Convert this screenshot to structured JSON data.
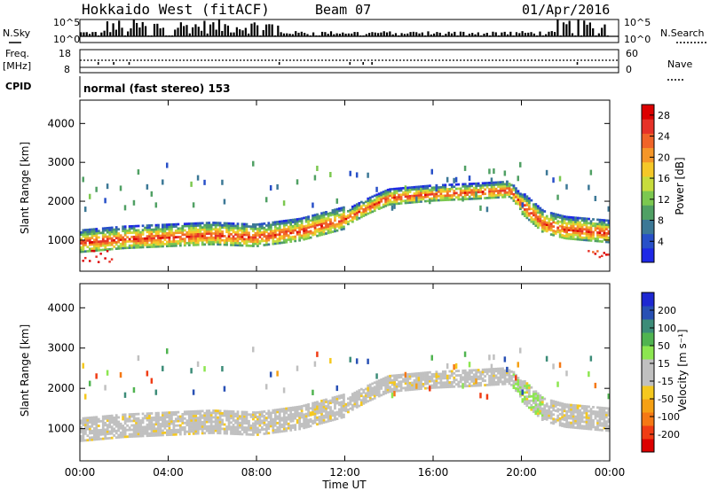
{
  "header": {
    "station": "Hokkaido West (fitACF)",
    "beam": "Beam 07",
    "date": "01/Apr/2016"
  },
  "left_labels": {
    "nsky": "N.Sky",
    "freq": "Freq.",
    "freq_unit": "[MHz]",
    "cpid": "CPID"
  },
  "right_labels": {
    "nsearch": "N.Search",
    "nave": "Nave"
  },
  "noise_ticks": {
    "top": "10^5",
    "bottom": "10^0"
  },
  "freq_ticks": {
    "top": "18",
    "bottom": "8"
  },
  "nave_ticks": {
    "top": "60",
    "bottom": "0"
  },
  "cpid_text": "normal (fast stereo) 153",
  "colors": {
    "power_scale": [
      "#1e28e6",
      "#2850c8",
      "#3c7896",
      "#50a064",
      "#7cc850",
      "#c8dc3c",
      "#f5c828",
      "#f59628",
      "#f06428",
      "#e63228",
      "#dc0000"
    ],
    "velocity_scale": [
      "#dc0000",
      "#f03c14",
      "#f57814",
      "#f5a014",
      "#f5c81e",
      "#c0c0c0",
      "#c0c0c0",
      "#8ce650",
      "#50b450",
      "#3c8c78",
      "#2850b4",
      "#1e28d2"
    ]
  },
  "chart_data": [
    {
      "type": "heatmap",
      "panel": "power",
      "xlabel": "",
      "ylabel": "Slant Range [km]",
      "x_ticks": [
        "00:00",
        "04:00",
        "08:00",
        "12:00",
        "16:00",
        "20:00",
        "00:00"
      ],
      "y_ticks": [
        "1000",
        "2000",
        "3000",
        "4000"
      ],
      "ylim": [
        200,
        4600
      ],
      "xlim_hours": [
        0,
        24
      ],
      "colorbar_label": "Power [dB]",
      "colorbar_ticks": [
        "4",
        "8",
        "12",
        "16",
        "20",
        "24",
        "28"
      ],
      "colorbar_range": [
        0,
        30
      ],
      "echo_band": {
        "hours": [
          0,
          2,
          4,
          6,
          8,
          10,
          12,
          13,
          14,
          16,
          18,
          19.5,
          20,
          21,
          22,
          24
        ],
        "range_km": [
          900,
          1000,
          1050,
          1100,
          1050,
          1200,
          1500,
          1800,
          2050,
          2150,
          2200,
          2250,
          1900,
          1400,
          1250,
          1150
        ]
      }
    },
    {
      "type": "heatmap",
      "panel": "velocity",
      "xlabel": "Time UT",
      "ylabel": "Slant Range [km]",
      "x_ticks": [
        "00:00",
        "04:00",
        "08:00",
        "12:00",
        "16:00",
        "20:00",
        "00:00"
      ],
      "y_ticks": [
        "1000",
        "2000",
        "3000",
        "4000"
      ],
      "ylim": [
        200,
        4600
      ],
      "xlim_hours": [
        0,
        24
      ],
      "colorbar_label": "Velocity [m s⁻¹]",
      "colorbar_ticks": [
        "200",
        "100",
        "50",
        "15",
        "-15",
        "-50",
        "-100",
        "-200"
      ],
      "colorbar_range": [
        -250,
        250
      ]
    }
  ]
}
